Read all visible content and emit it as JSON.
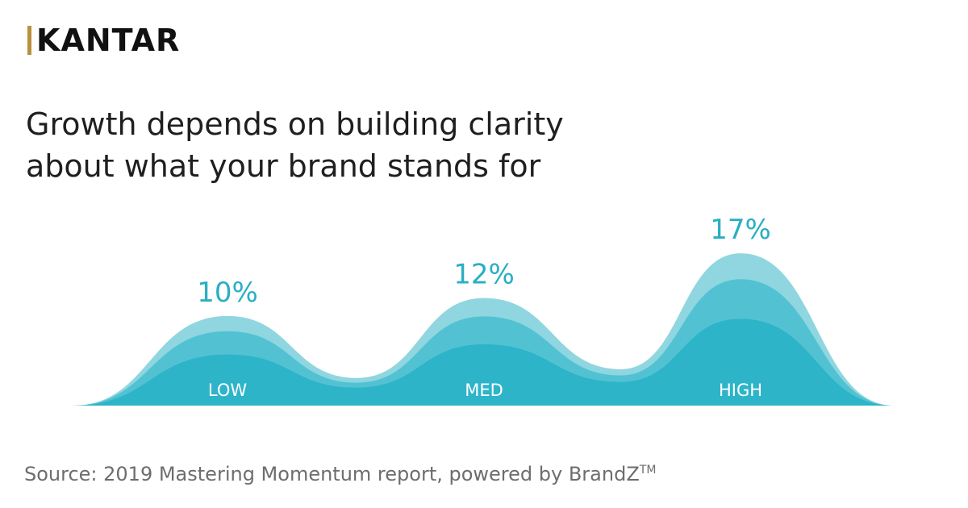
{
  "brand": {
    "name": "KANTAR"
  },
  "headline": {
    "line1": "Growth depends on building clarity",
    "line2": "about what your brand stands for"
  },
  "source": {
    "text": "Source: 2019 Mastering Momentum report, powered by BrandZ",
    "trademark": "TM"
  },
  "colors": {
    "layer_light": "#8fd6e0",
    "layer_mid": "#52c2d3",
    "layer_dark": "#2db4c9",
    "label_value": "#2aaec4",
    "label_category": "#ffffff"
  },
  "chart_data": {
    "type": "area",
    "categories": [
      "LOW",
      "MED",
      "HIGH"
    ],
    "values": [
      10,
      12,
      17
    ],
    "value_labels": [
      "10%",
      "12%",
      "17%"
    ],
    "ylim": [
      0,
      18
    ],
    "grid": false,
    "legend": "none"
  }
}
